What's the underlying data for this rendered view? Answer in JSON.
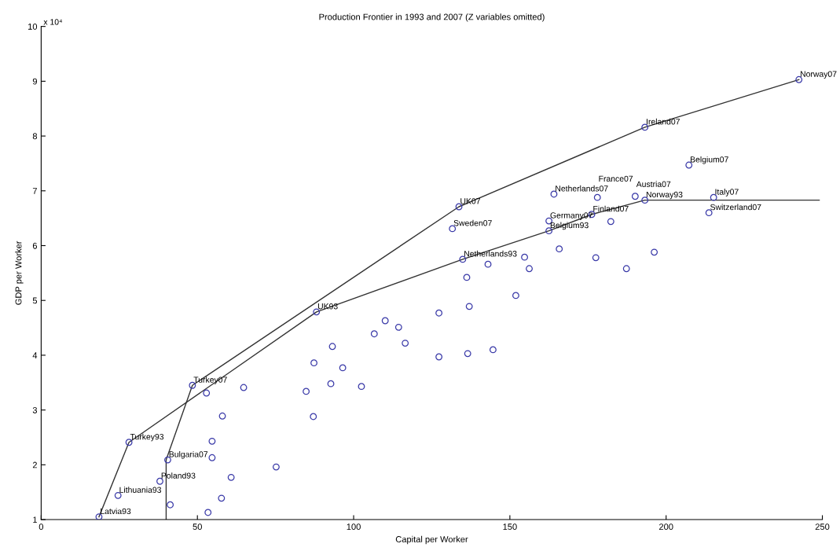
{
  "chart_data": {
    "type": "scatter",
    "title": "Production Frontier in 1993 and 2007 (Z variables omitted)",
    "xlabel": "Capital per Worker",
    "ylabel": "GDP per Worker",
    "xlim": [
      0,
      250
    ],
    "xticks": [
      0,
      50,
      100,
      150,
      200,
      250
    ],
    "ylim": [
      1,
      10
    ],
    "yticks": [
      1,
      2,
      3,
      4,
      5,
      6,
      7,
      8,
      9,
      10
    ],
    "grid": false,
    "legend": false,
    "series": [
      {
        "marker": "circle",
        "color": "#3a3aa8",
        "x": [
          18.5,
          24.6,
          28.1,
          38.0,
          40.5,
          48.4,
          88.1,
          134.9,
          162.5,
          193.2,
          133.7,
          131.6,
          162.5,
          164.1,
          176.2,
          178.0,
          190.1,
          193.2,
          207.3,
          215.2,
          213.7,
          242.5,
          52.9,
          64.8,
          84.8,
          58.0,
          54.7,
          54.7,
          75.2,
          60.8,
          57.7,
          41.3,
          53.4,
          136.2,
          151.9,
          137.0,
          127.3,
          110.1,
          114.4,
          106.6,
          116.5,
          93.2,
          87.3,
          96.5,
          127.3,
          136.5,
          144.6,
          92.7,
          102.5,
          87.1,
          143.0,
          154.7,
          156.2,
          165.8,
          177.5,
          187.3,
          196.2,
          182.3
        ],
        "values": [
          1.05,
          1.44,
          2.41,
          1.7,
          2.09,
          3.45,
          4.79,
          5.75,
          6.27,
          6.83,
          6.71,
          6.31,
          6.45,
          6.94,
          6.57,
          6.88,
          6.9,
          8.16,
          7.47,
          6.88,
          6.6,
          9.03,
          3.31,
          3.41,
          3.34,
          2.89,
          2.43,
          2.13,
          1.96,
          1.77,
          1.39,
          1.27,
          1.13,
          5.42,
          5.09,
          4.89,
          4.77,
          4.63,
          4.51,
          4.39,
          4.22,
          4.16,
          3.86,
          3.77,
          3.97,
          4.03,
          4.1,
          3.48,
          3.43,
          2.88,
          5.66,
          5.79,
          5.58,
          5.94,
          5.78,
          5.58,
          5.88,
          6.44
        ]
      },
      {
        "type": "line",
        "marker": "none",
        "line_style": "solid",
        "color": "#333333",
        "x": [
          18.5,
          28.1,
          88.1,
          134.9,
          162.5,
          176.2,
          193.2,
          249
        ],
        "values": [
          1.05,
          2.41,
          4.79,
          5.75,
          6.27,
          6.57,
          6.83,
          6.83
        ]
      },
      {
        "type": "line",
        "marker": "none",
        "line_style": "solid",
        "color": "#333333",
        "x": [
          40.0,
          40.0,
          48.4,
          133.7,
          193.2,
          242.5
        ],
        "values": [
          1.0,
          2.09,
          3.45,
          6.71,
          8.16,
          9.03
        ]
      }
    ],
    "annotations": [
      {
        "text": "Latvia93",
        "x": 18.5,
        "y": 1.05
      },
      {
        "text": "Lithuania93",
        "x": 24.6,
        "y": 1.44
      },
      {
        "text": "Turkey93",
        "x": 28.1,
        "y": 2.41
      },
      {
        "text": "Poland93",
        "x": 38.0,
        "y": 1.7
      },
      {
        "text": "Bulgaria07",
        "x": 40.5,
        "y": 2.09
      },
      {
        "text": "Turkey07",
        "x": 48.4,
        "y": 3.45
      },
      {
        "text": "UK93",
        "x": 88.1,
        "y": 4.79
      },
      {
        "text": "Netherlands93",
        "x": 134.9,
        "y": 5.75
      },
      {
        "text": "Belgium93",
        "x": 162.5,
        "y": 6.27
      },
      {
        "text": "Norway93",
        "x": 193.2,
        "y": 6.83
      },
      {
        "text": "UK07",
        "x": 133.7,
        "y": 6.71
      },
      {
        "text": "Sweden07",
        "x": 131.6,
        "y": 6.31
      },
      {
        "text": "Germany07",
        "x": 162.5,
        "y": 6.45
      },
      {
        "text": "Netherlands07",
        "x": 164.1,
        "y": 6.94
      },
      {
        "text": "Finland07",
        "x": 176.2,
        "y": 6.57
      },
      {
        "text": "France07",
        "x": 178.0,
        "y": 6.88
      },
      {
        "text": "Austria07",
        "x": 190.1,
        "y": 6.9
      },
      {
        "text": "Ireland07",
        "x": 193.2,
        "y": 8.16
      },
      {
        "text": "Belgium07",
        "x": 207.3,
        "y": 7.47
      },
      {
        "text": "Italy07",
        "x": 215.2,
        "y": 6.88
      },
      {
        "text": "Switzerland07",
        "x": 213.7,
        "y": 6.6
      },
      {
        "text": "Norway07",
        "x": 242.5,
        "y": 9.03
      },
      "x 10⁴"
    ]
  }
}
